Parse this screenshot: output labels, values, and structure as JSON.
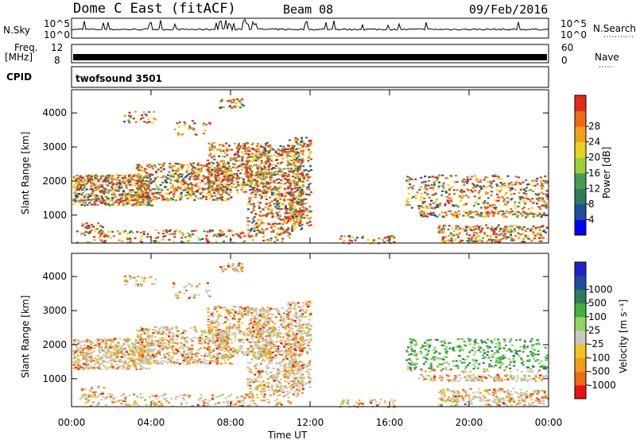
{
  "header": {
    "title": "Dome C East (fitACF)",
    "beam": "Beam 08",
    "date": "09/Feb/2016"
  },
  "strips": {
    "nsky_label": "N.Sky",
    "nsky_ticks": [
      "10^5",
      "10^0"
    ],
    "nsearch_label": "N.Search",
    "nsearch_ticks": [
      "10^5",
      "10^0"
    ],
    "freq_label": "Freq.",
    "freq_unit": "[MHz]",
    "freq_ticks": [
      "12",
      "8"
    ],
    "nave_label": "Nave",
    "nave_ticks": [
      "60",
      "0"
    ],
    "cpid_label": "CPID",
    "cpid_value": "twofsound 3501"
  },
  "colors": {
    "power": [
      "#0000ff",
      "#1f4ea0",
      "#2f7c5c",
      "#4a9a52",
      "#9ccf3a",
      "#e8d41e",
      "#f0a01c",
      "#ec6a14",
      "#e8281a"
    ],
    "velocity": [
      "#ee1111",
      "#f06a14",
      "#f39c1a",
      "#f3c21e",
      "#c8c8c0",
      "#8ed65a",
      "#3fb042",
      "#2f7c5c",
      "#1f4ea0",
      "#2222cc"
    ]
  },
  "chart_data": [
    {
      "type": "heatmap",
      "name": "power",
      "ylabel": "Slant Range [km]",
      "yticks": [
        "1000",
        "2000",
        "3000",
        "4000"
      ],
      "xticks": [
        "00:00",
        "04:00",
        "08:00",
        "12:00",
        "16:00",
        "20:00",
        "00:00"
      ],
      "colorbar_label": "Power [dB]",
      "colorbar_ticks": [
        "4",
        "8",
        "12",
        "16",
        "20",
        "24",
        "28"
      ]
    },
    {
      "type": "heatmap",
      "name": "velocity",
      "ylabel": "Slant Range [km]",
      "yticks": [
        "1000",
        "2000",
        "3000",
        "4000"
      ],
      "xticks": [
        "00:00",
        "04:00",
        "08:00",
        "12:00",
        "16:00",
        "20:00",
        "00:00"
      ],
      "xlabel": "Time UT",
      "colorbar_label": "Velocity [m s⁻¹]",
      "colorbar_ticks": [
        "-1000",
        "-500",
        "-100",
        "-25",
        "25",
        "100",
        "500",
        "1000"
      ]
    }
  ]
}
